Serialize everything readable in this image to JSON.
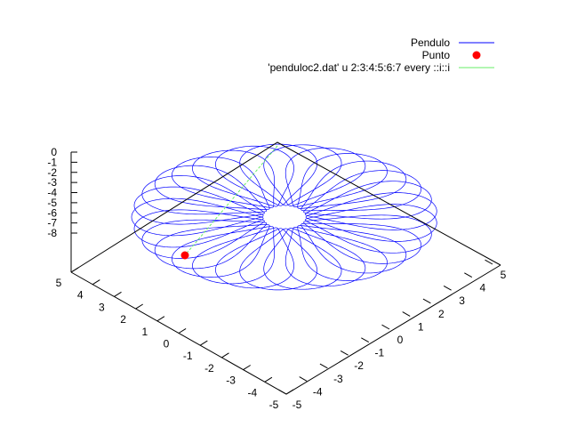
{
  "chart_data": {
    "type": "line3d",
    "title": "",
    "xlabel": "",
    "ylabel": "",
    "zlabel": "",
    "xrange": [
      -5,
      5
    ],
    "yrange": [
      -5,
      5
    ],
    "zrange": [
      -8,
      0
    ],
    "xtick_labels": [
      "-5",
      "-4",
      "-3",
      "-2",
      "-1",
      "0",
      "1",
      "2",
      "3",
      "4",
      "5"
    ],
    "ytick_labels": [
      "5",
      "4",
      "3",
      "2",
      "1",
      "0",
      "-1",
      "-2",
      "-3",
      "-4",
      "-5"
    ],
    "ztick_labels": [
      "0",
      "-1",
      "-2",
      "-3",
      "-4",
      "-5",
      "-6",
      "-7",
      "-8"
    ],
    "legend_position": "top-right",
    "series": [
      {
        "name": "Pendulo",
        "style": "line",
        "color": "#0000ff",
        "description_params": {
          "petals": 29,
          "z_level": -6.5
        }
      },
      {
        "name": "Punto",
        "style": "point",
        "color": "#ff0000",
        "point": {
          "x": -4.2,
          "y": 3.9,
          "z": -6.5
        }
      },
      {
        "name": "'penduloc2.dat' u 2:3:4:5:6:7 every ::i::i",
        "style": "vector",
        "color": "#00e000",
        "from": {
          "x": 0,
          "y": 0,
          "z": 0
        },
        "to": {
          "x": -4.2,
          "y": 3.9,
          "z": -6.5
        }
      }
    ]
  }
}
